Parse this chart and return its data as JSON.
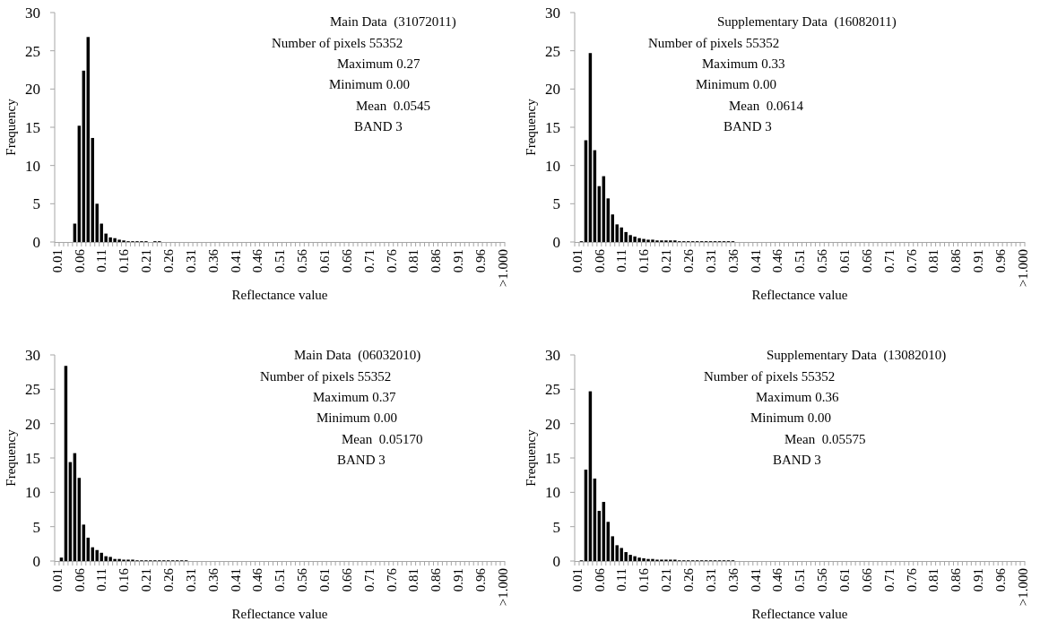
{
  "chart_data": [
    {
      "type": "bar",
      "title": "Main Data  (31072011)",
      "annotations": [
        "Number of pixels 55352",
        "Maximum 0.27",
        "Minimum 0.00",
        "Mean  0.0545",
        "BAND 3"
      ],
      "xlabel": "Reflectance value",
      "ylabel": "Frequency",
      "ylim": [
        0,
        30
      ],
      "yticks": [
        0,
        5,
        10,
        15,
        20,
        25,
        30
      ],
      "color": "#000000",
      "categories": [
        "0.01",
        null,
        null,
        null,
        null,
        "0.06",
        null,
        null,
        null,
        null,
        "0.11",
        null,
        null,
        null,
        null,
        "0.16",
        null,
        null,
        null,
        null,
        "0.21",
        null,
        null,
        null,
        null,
        "0.26",
        null,
        null,
        null,
        null,
        "0.31",
        null,
        null,
        null,
        null,
        "0.36",
        null,
        null,
        null,
        null,
        "0.41",
        null,
        null,
        null,
        null,
        "0.46",
        null,
        null,
        null,
        null,
        "0.51",
        null,
        null,
        null,
        null,
        "0.56",
        null,
        null,
        null,
        null,
        "0.61",
        null,
        null,
        null,
        null,
        "0.66",
        null,
        null,
        null,
        null,
        "0.71",
        null,
        null,
        null,
        null,
        "0.76",
        null,
        null,
        null,
        null,
        "0.81",
        null,
        null,
        null,
        null,
        "0.86",
        null,
        null,
        null,
        null,
        "0.91",
        null,
        null,
        null,
        null,
        "0.96",
        null,
        null,
        null,
        null,
        ">1.000"
      ],
      "values": [
        0,
        0,
        0,
        0,
        2.4,
        15.2,
        22.4,
        26.8,
        13.6,
        5.0,
        2.4,
        1.1,
        0.6,
        0.5,
        0.3,
        0.2,
        0.1,
        0.1,
        0.1,
        0.1,
        0.1,
        0,
        0.1,
        0.1,
        0,
        0,
        0,
        0,
        0,
        0,
        0,
        0,
        0,
        0,
        0,
        0,
        0,
        0,
        0,
        0,
        0,
        0,
        0,
        0,
        0,
        0,
        0,
        0,
        0,
        0,
        0,
        0,
        0,
        0,
        0,
        0,
        0,
        0,
        0,
        0,
        0,
        0,
        0,
        0,
        0,
        0,
        0,
        0,
        0,
        0,
        0,
        0,
        0,
        0,
        0,
        0,
        0,
        0,
        0,
        0,
        0,
        0,
        0,
        0,
        0,
        0,
        0,
        0,
        0,
        0,
        0,
        0,
        0,
        0,
        0,
        0,
        0,
        0,
        0,
        0,
        0
      ]
    },
    {
      "type": "bar",
      "title": "Supplementary Data  (16082011)",
      "annotations": [
        "Number of pixels 55352",
        "Maximum 0.33",
        "Minimum 0.00",
        "Mean  0.0614",
        "BAND 3"
      ],
      "xlabel": "Reflectance value",
      "ylabel": "Frequency",
      "ylim": [
        0,
        30
      ],
      "yticks": [
        0,
        5,
        10,
        15,
        20,
        25,
        30
      ],
      "color": "#000000",
      "categories": [
        "0.01",
        null,
        null,
        null,
        null,
        "0.06",
        null,
        null,
        null,
        null,
        "0.11",
        null,
        null,
        null,
        null,
        "0.16",
        null,
        null,
        null,
        null,
        "0.21",
        null,
        null,
        null,
        null,
        "0.26",
        null,
        null,
        null,
        null,
        "0.31",
        null,
        null,
        null,
        null,
        "0.36",
        null,
        null,
        null,
        null,
        "0.41",
        null,
        null,
        null,
        null,
        "0.46",
        null,
        null,
        null,
        null,
        "0.51",
        null,
        null,
        null,
        null,
        "0.56",
        null,
        null,
        null,
        null,
        "0.61",
        null,
        null,
        null,
        null,
        "0.66",
        null,
        null,
        null,
        null,
        "0.71",
        null,
        null,
        null,
        null,
        "0.76",
        null,
        null,
        null,
        null,
        "0.81",
        null,
        null,
        null,
        null,
        "0.86",
        null,
        null,
        null,
        null,
        "0.91",
        null,
        null,
        null,
        null,
        "0.96",
        null,
        null,
        null,
        null,
        ">1.000"
      ],
      "values": [
        0,
        0.1,
        13.3,
        24.7,
        12.0,
        7.3,
        8.6,
        5.7,
        3.6,
        2.3,
        1.9,
        1.3,
        0.9,
        0.7,
        0.5,
        0.4,
        0.3,
        0.3,
        0.2,
        0.2,
        0.2,
        0.2,
        0.2,
        0.1,
        0.1,
        0.1,
        0.1,
        0.1,
        0.1,
        0.1,
        0.1,
        0.1,
        0.1,
        0.1,
        0.1,
        0.1,
        0,
        0,
        0,
        0,
        0,
        0,
        0,
        0,
        0,
        0,
        0,
        0,
        0,
        0,
        0,
        0,
        0,
        0,
        0,
        0,
        0,
        0,
        0,
        0,
        0,
        0,
        0,
        0,
        0,
        0,
        0,
        0,
        0,
        0,
        0,
        0,
        0,
        0,
        0,
        0,
        0,
        0,
        0,
        0,
        0,
        0,
        0,
        0,
        0,
        0,
        0,
        0,
        0,
        0,
        0,
        0,
        0,
        0,
        0,
        0,
        0,
        0,
        0,
        0,
        0
      ]
    },
    {
      "type": "bar",
      "title": "Main Data  (06032010)",
      "annotations": [
        "Number of pixels 55352",
        "Maximum 0.37",
        "Minimum 0.00",
        "Mean  0.05170",
        "BAND 3"
      ],
      "xlabel": "Reflectance value",
      "ylabel": "Frequency",
      "ylim": [
        0,
        30
      ],
      "yticks": [
        0,
        5,
        10,
        15,
        20,
        25,
        30
      ],
      "color": "#000000",
      "categories": [
        "0.01",
        null,
        null,
        null,
        null,
        "0.06",
        null,
        null,
        null,
        null,
        "0.11",
        null,
        null,
        null,
        null,
        "0.16",
        null,
        null,
        null,
        null,
        "0.21",
        null,
        null,
        null,
        null,
        "0.26",
        null,
        null,
        null,
        null,
        "0.31",
        null,
        null,
        null,
        null,
        "0.36",
        null,
        null,
        null,
        null,
        "0.41",
        null,
        null,
        null,
        null,
        "0.46",
        null,
        null,
        null,
        null,
        "0.51",
        null,
        null,
        null,
        null,
        "0.56",
        null,
        null,
        null,
        null,
        "0.61",
        null,
        null,
        null,
        null,
        "0.66",
        null,
        null,
        null,
        null,
        "0.71",
        null,
        null,
        null,
        null,
        "0.76",
        null,
        null,
        null,
        null,
        "0.81",
        null,
        null,
        null,
        null,
        "0.86",
        null,
        null,
        null,
        null,
        "0.91",
        null,
        null,
        null,
        null,
        "0.96",
        null,
        null,
        null,
        null,
        ">1.000"
      ],
      "values": [
        0,
        0.5,
        28.4,
        14.4,
        15.7,
        12.1,
        5.3,
        3.4,
        2.0,
        1.6,
        1.2,
        0.7,
        0.6,
        0.3,
        0.3,
        0.2,
        0.2,
        0.2,
        0.1,
        0.1,
        0.1,
        0.1,
        0.1,
        0.1,
        0.1,
        0.1,
        0.1,
        0.1,
        0.1,
        0.1,
        0,
        0,
        0,
        0,
        0,
        0,
        0,
        0,
        0,
        0,
        0,
        0,
        0,
        0,
        0,
        0,
        0,
        0,
        0,
        0,
        0,
        0,
        0,
        0,
        0,
        0,
        0,
        0,
        0,
        0,
        0,
        0,
        0,
        0,
        0,
        0,
        0,
        0,
        0,
        0,
        0,
        0,
        0,
        0,
        0,
        0,
        0,
        0,
        0,
        0,
        0,
        0,
        0,
        0,
        0,
        0,
        0,
        0,
        0,
        0,
        0,
        0,
        0,
        0,
        0,
        0,
        0,
        0,
        0,
        0,
        0
      ]
    },
    {
      "type": "bar",
      "title": "Supplementary Data  (13082010)",
      "annotations": [
        "Number of pixels 55352",
        "Maximum 0.36",
        "Minimum 0.00",
        "Mean  0.05575",
        "BAND 3"
      ],
      "xlabel": "Reflectance value",
      "ylabel": "Frequency",
      "ylim": [
        0,
        30
      ],
      "yticks": [
        0,
        5,
        10,
        15,
        20,
        25,
        30
      ],
      "color": "#000000",
      "categories": [
        "0.01",
        null,
        null,
        null,
        null,
        "0.06",
        null,
        null,
        null,
        null,
        "0.11",
        null,
        null,
        null,
        null,
        "0.16",
        null,
        null,
        null,
        null,
        "0.21",
        null,
        null,
        null,
        null,
        "0.26",
        null,
        null,
        null,
        null,
        "0.31",
        null,
        null,
        null,
        null,
        "0.36",
        null,
        null,
        null,
        null,
        "0.41",
        null,
        null,
        null,
        null,
        "0.46",
        null,
        null,
        null,
        null,
        "0.51",
        null,
        null,
        null,
        null,
        "0.56",
        null,
        null,
        null,
        null,
        "0.61",
        null,
        null,
        null,
        null,
        "0.66",
        null,
        null,
        null,
        null,
        "0.71",
        null,
        null,
        null,
        null,
        "0.76",
        null,
        null,
        null,
        null,
        "0.81",
        null,
        null,
        null,
        null,
        "0.86",
        null,
        null,
        null,
        null,
        "0.91",
        null,
        null,
        null,
        null,
        "0.96",
        null,
        null,
        null,
        null,
        ">1.000"
      ],
      "values": [
        0,
        0.1,
        13.3,
        24.7,
        12.0,
        7.3,
        8.6,
        5.7,
        3.6,
        2.3,
        1.9,
        1.3,
        0.9,
        0.7,
        0.5,
        0.4,
        0.3,
        0.3,
        0.2,
        0.2,
        0.2,
        0.2,
        0.2,
        0.1,
        0.1,
        0.1,
        0.1,
        0.1,
        0.1,
        0.1,
        0.1,
        0.1,
        0.1,
        0.1,
        0.1,
        0.1,
        0,
        0,
        0,
        0,
        0,
        0,
        0,
        0,
        0,
        0,
        0,
        0,
        0,
        0,
        0,
        0,
        0,
        0,
        0,
        0,
        0,
        0,
        0,
        0,
        0,
        0,
        0,
        0,
        0,
        0,
        0,
        0,
        0,
        0,
        0,
        0,
        0,
        0,
        0,
        0,
        0,
        0,
        0,
        0,
        0,
        0,
        0,
        0,
        0,
        0,
        0,
        0,
        0,
        0,
        0,
        0,
        0,
        0,
        0,
        0,
        0,
        0,
        0,
        0,
        0
      ]
    }
  ]
}
